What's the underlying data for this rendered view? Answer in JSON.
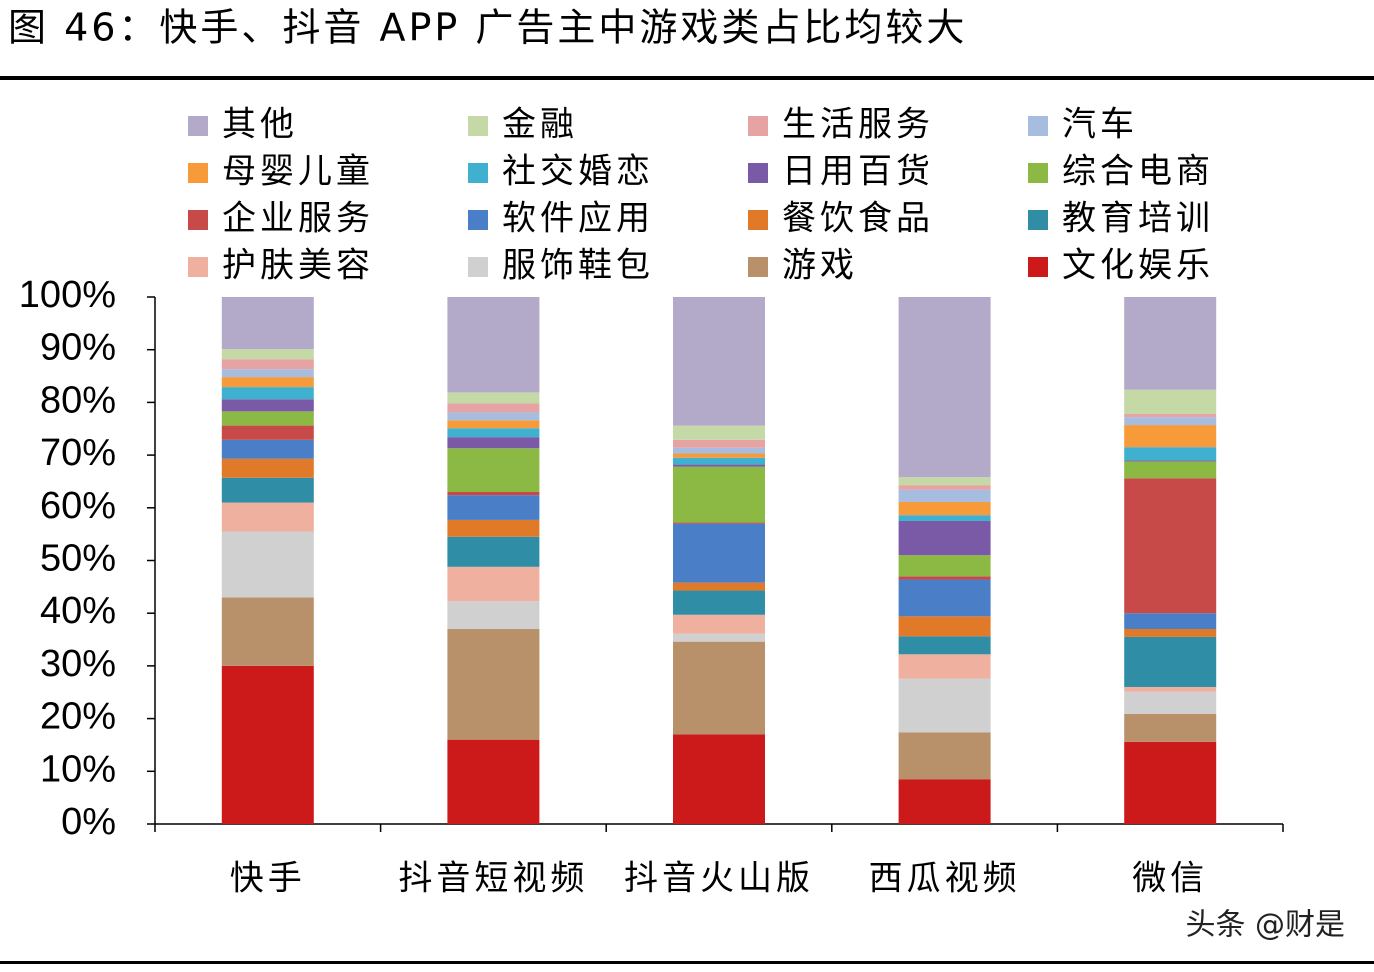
{
  "chart_data": {
    "type": "stacked_bar",
    "title": "图 46：快手、抖音 APP 广告主中游戏类占比均较大",
    "watermark": "头条 @财是",
    "categories": [
      "快手",
      "抖音短视频",
      "抖音火山版",
      "西瓜视频",
      "微信"
    ],
    "ylim": [
      0,
      100
    ],
    "yticks": [
      {
        "value": 0,
        "label": "0%"
      },
      {
        "value": 10,
        "label": "10%"
      },
      {
        "value": 20,
        "label": "20%"
      },
      {
        "value": 30,
        "label": "30%"
      },
      {
        "value": 40,
        "label": "40%"
      },
      {
        "value": 50,
        "label": "50%"
      },
      {
        "value": 60,
        "label": "60%"
      },
      {
        "value": 70,
        "label": "70%"
      },
      {
        "value": 80,
        "label": "80%"
      },
      {
        "value": 90,
        "label": "90%"
      },
      {
        "value": 100,
        "label": "100%"
      }
    ],
    "series": [
      {
        "name": "其他",
        "color": "#b3a9c9",
        "values": [
          9.9,
          18.1,
          24.4,
          34.2,
          17.6
        ]
      },
      {
        "name": "金融",
        "color": "#c4d9a5",
        "values": [
          1.9,
          2.1,
          2.7,
          1.5,
          4.6
        ]
      },
      {
        "name": "生活服务",
        "color": "#e6a3a3",
        "values": [
          1.9,
          1.7,
          1.5,
          0.9,
          0.6
        ]
      },
      {
        "name": "汽车",
        "color": "#a6bde0",
        "values": [
          1.5,
          1.5,
          1.1,
          2.3,
          1.5
        ]
      },
      {
        "name": "母婴儿童",
        "color": "#f79a3a",
        "values": [
          1.9,
          1.5,
          0.8,
          2.5,
          4.2
        ]
      },
      {
        "name": "社交婚恋",
        "color": "#3fb0d0",
        "values": [
          2.3,
          1.7,
          1.3,
          1.1,
          2.5
        ]
      },
      {
        "name": "日用百货",
        "color": "#7a5aa6",
        "values": [
          2.3,
          2.1,
          0.4,
          6.5,
          0.2
        ]
      },
      {
        "name": "综合电商",
        "color": "#8cb844",
        "values": [
          2.7,
          8.3,
          10.6,
          4,
          3.2
        ]
      },
      {
        "name": "企业服务",
        "color": "#c84a48",
        "values": [
          2.7,
          0.6,
          0.2,
          0.6,
          25.6
        ]
      },
      {
        "name": "软件应用",
        "color": "#4a7fc8",
        "values": [
          3.6,
          4.7,
          11.2,
          7,
          3
        ]
      },
      {
        "name": "餐饮食品",
        "color": "#e07a28",
        "values": [
          3.6,
          3.2,
          1.5,
          3.8,
          1.5
        ]
      },
      {
        "name": "教育培训",
        "color": "#2f8ea6",
        "values": [
          4.7,
          5.7,
          4.6,
          3.4,
          9.5
        ]
      },
      {
        "name": "护肤美容",
        "color": "#f0b0a0",
        "values": [
          5.5,
          6.5,
          3.6,
          4.6,
          0.9
        ]
      },
      {
        "name": "服饰鞋包",
        "color": "#d0d0d0",
        "values": [
          12.5,
          5.3,
          1.5,
          10.2,
          4.2
        ]
      },
      {
        "name": "游戏",
        "color": "#b8916a",
        "values": [
          13,
          21,
          17.6,
          8.9,
          5.3
        ]
      },
      {
        "name": "文化娱乐",
        "color": "#cc1a1a",
        "values": [
          30,
          16,
          17,
          8.5,
          15.6
        ]
      }
    ]
  }
}
